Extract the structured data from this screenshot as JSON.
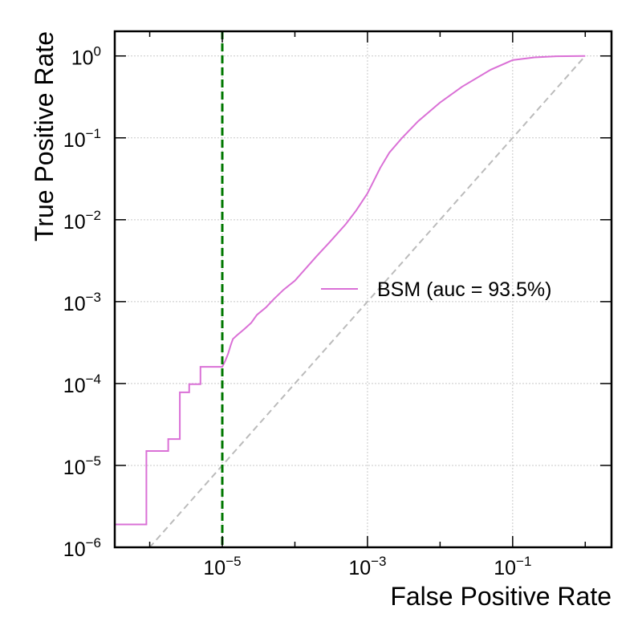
{
  "chart_data": {
    "type": "line",
    "xlabel": "False Positive Rate",
    "ylabel": "True Positive Rate",
    "xscale": "log",
    "yscale": "log",
    "xlim": [
      3.3e-07,
      2.3
    ],
    "ylim": [
      1e-06,
      2.0
    ],
    "grid": true,
    "legend_position": "center-right",
    "x_ticks": [
      {
        "value": 1e-05,
        "base": "10",
        "exp": "−5"
      },
      {
        "value": 0.001,
        "base": "10",
        "exp": "−3"
      },
      {
        "value": 0.1,
        "base": "10",
        "exp": "−1"
      }
    ],
    "y_ticks": [
      {
        "value": 1e-06,
        "base": "10",
        "exp": "−6"
      },
      {
        "value": 1e-05,
        "base": "10",
        "exp": "−5"
      },
      {
        "value": 0.0001,
        "base": "10",
        "exp": "−4"
      },
      {
        "value": 0.001,
        "base": "10",
        "exp": "−3"
      },
      {
        "value": 0.01,
        "base": "10",
        "exp": "−2"
      },
      {
        "value": 0.1,
        "base": "10",
        "exp": "−1"
      },
      {
        "value": 1,
        "base": "10",
        "exp": "0"
      }
    ],
    "series": [
      {
        "name": "BSM (auc = 93.5%)",
        "color": "#da70d6",
        "step": true,
        "x": [
          3.3e-07,
          9e-07,
          9e-07,
          1.8e-06,
          1.8e-06,
          2.6e-06,
          2.6e-06,
          3.5e-06,
          3.5e-06,
          5e-06,
          5e-06,
          1e-05,
          1.1e-05,
          1.2e-05,
          1.3e-05,
          1.4e-05,
          1.6e-05,
          2e-05,
          2.5e-05,
          3e-05,
          4e-05,
          5e-05,
          7e-05,
          0.0001,
          0.00015,
          0.0002,
          0.0003,
          0.0005,
          0.0007,
          0.001,
          0.0015,
          0.002,
          0.003,
          0.005,
          0.01,
          0.02,
          0.05,
          0.1,
          0.2,
          0.4,
          1.0
        ],
        "y": [
          1.9e-06,
          1.9e-06,
          1.5e-05,
          1.5e-05,
          2.1e-05,
          2.1e-05,
          7.8e-05,
          7.8e-05,
          9.8e-05,
          9.8e-05,
          0.00016,
          0.00016,
          0.00019,
          0.00023,
          0.00029,
          0.00035,
          0.00039,
          0.00046,
          0.00055,
          0.00069,
          0.00085,
          0.00105,
          0.0014,
          0.0018,
          0.0027,
          0.0036,
          0.0053,
          0.0088,
          0.013,
          0.021,
          0.043,
          0.066,
          0.1,
          0.16,
          0.27,
          0.42,
          0.68,
          0.89,
          0.96,
          0.99,
          1.0
        ]
      }
    ],
    "reference_line": {
      "color": "#bbbbbb",
      "style": "dashed",
      "x": [
        3.3e-07,
        1.0
      ],
      "y": [
        3.3e-07,
        1.0
      ]
    },
    "threshold_line": {
      "color": "#007700",
      "style": "dashed",
      "x": 1e-05
    }
  }
}
